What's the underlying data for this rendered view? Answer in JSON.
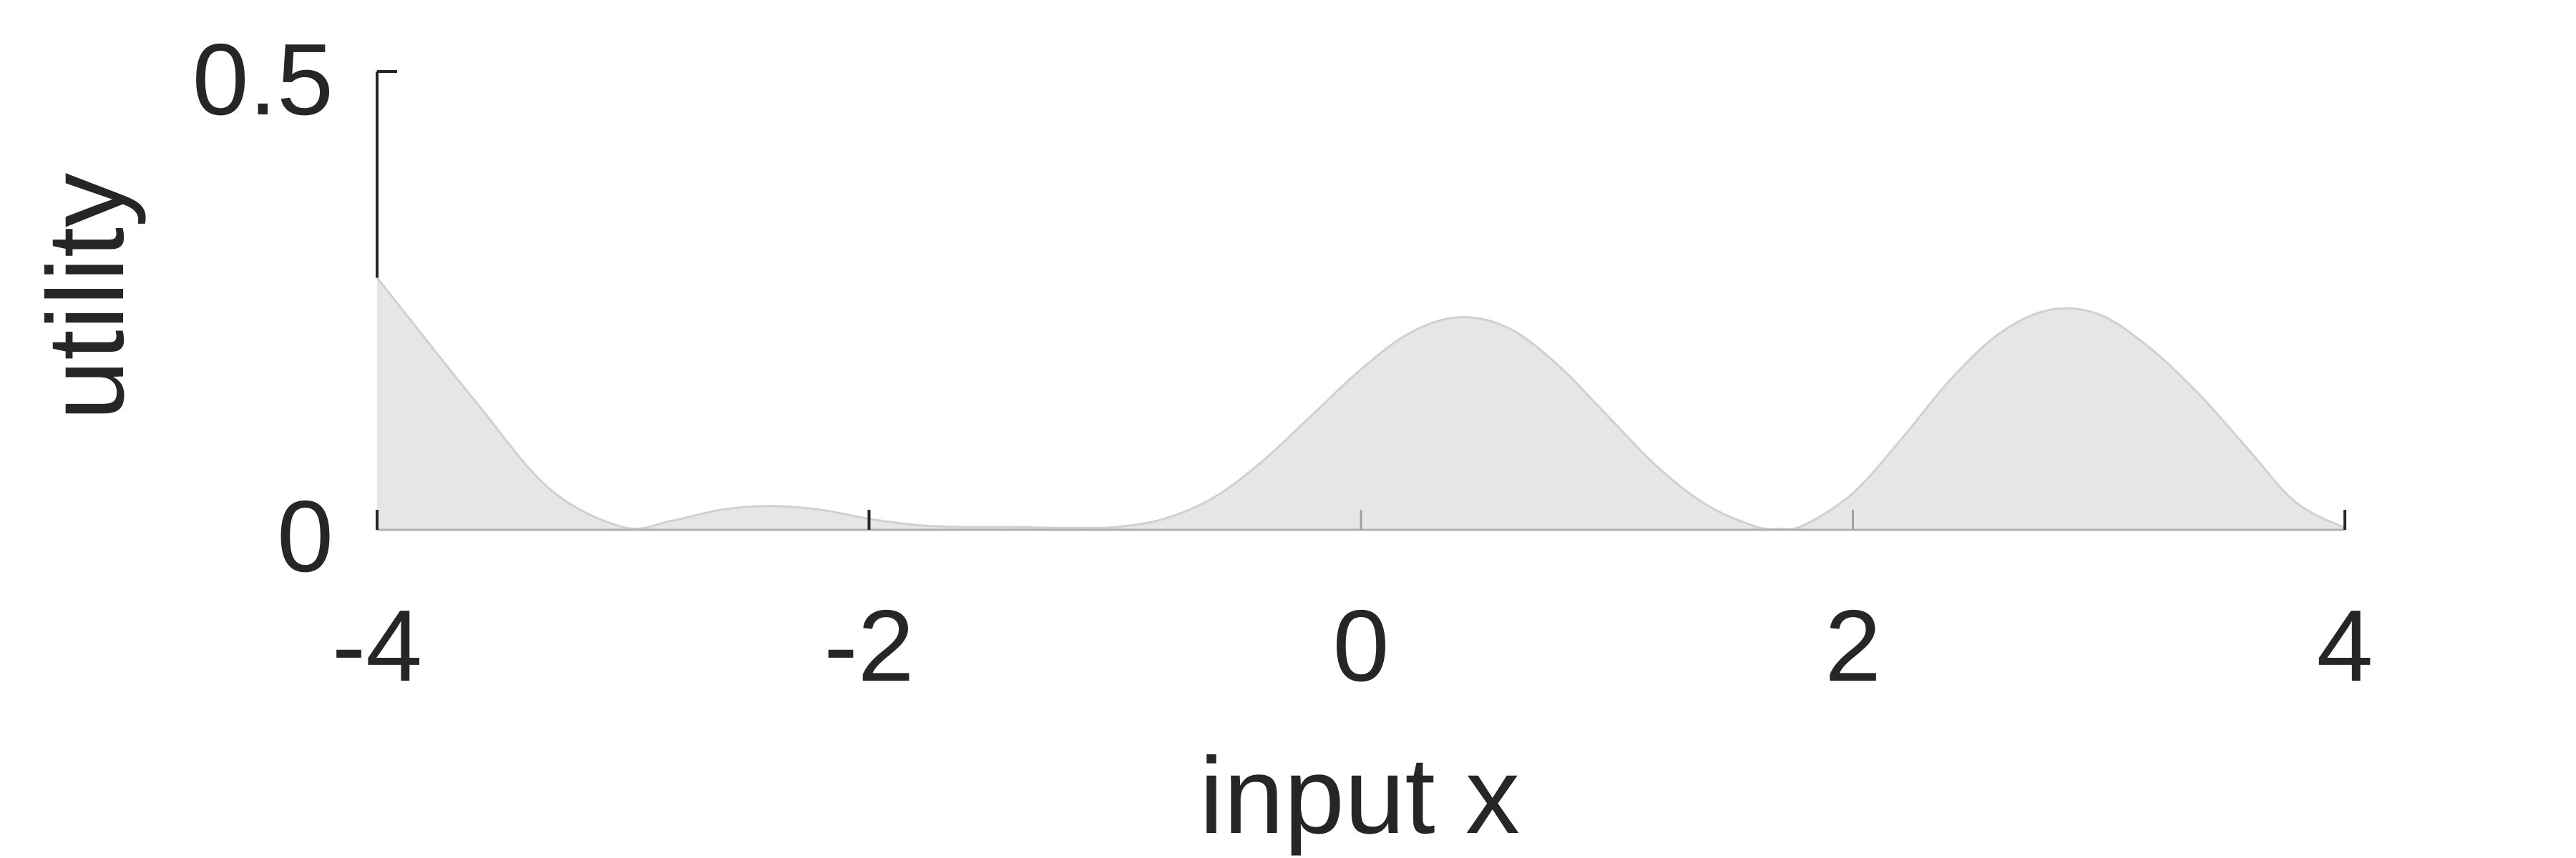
{
  "chart_data": {
    "type": "area",
    "title": "",
    "xlabel": "input x",
    "ylabel": "utility",
    "xlim": [
      -4,
      4
    ],
    "ylim": [
      0,
      0.5
    ],
    "x_ticks": [
      -4,
      -2,
      0,
      2,
      4
    ],
    "x_tick_labels": [
      "-4",
      "-2",
      "0",
      "2",
      "4"
    ],
    "y_ticks": [
      0,
      0.5
    ],
    "y_tick_labels": [
      "0",
      "0.5"
    ],
    "grid": false,
    "legend": "none",
    "series": [
      {
        "fill_color": "#e6e6e6",
        "line_color": "#d0d0d0",
        "x": [
          -4.0,
          -3.6,
          -3.3,
          -3.0,
          -2.8,
          -2.6,
          -2.4,
          -2.2,
          -2.0,
          -1.8,
          -1.6,
          -1.4,
          -1.2,
          -1.0,
          -0.8,
          -0.6,
          -0.4,
          -0.2,
          0.0,
          0.2,
          0.4,
          0.6,
          0.8,
          1.0,
          1.2,
          1.4,
          1.6,
          1.7,
          1.8,
          2.0,
          2.2,
          2.4,
          2.6,
          2.8,
          3.0,
          3.2,
          3.4,
          3.6,
          3.8,
          4.0
        ],
        "y": [
          0.275,
          0.14,
          0.045,
          0.003,
          0.01,
          0.022,
          0.026,
          0.022,
          0.012,
          0.005,
          0.003,
          0.003,
          0.002,
          0.003,
          0.012,
          0.035,
          0.075,
          0.125,
          0.175,
          0.215,
          0.232,
          0.22,
          0.18,
          0.125,
          0.07,
          0.028,
          0.004,
          0.001,
          0.005,
          0.04,
          0.1,
          0.165,
          0.215,
          0.24,
          0.235,
          0.2,
          0.15,
          0.09,
          0.03,
          0.002
        ]
      }
    ]
  }
}
